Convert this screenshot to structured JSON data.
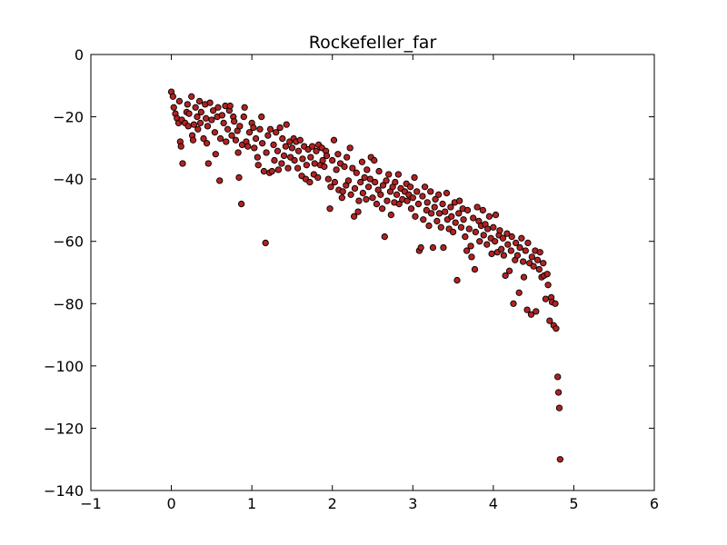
{
  "colors": {
    "marker_fill": "#b22222",
    "marker_edge": "#000000",
    "axes": "#000000",
    "background": "#ffffff"
  },
  "chart_data": {
    "type": "scatter",
    "title": "Rockefeller_far",
    "xlabel": "",
    "ylabel": "",
    "xlim": [
      -1,
      6
    ],
    "ylim": [
      -140,
      0
    ],
    "xticks": [
      -1,
      0,
      1,
      2,
      3,
      4,
      5,
      6
    ],
    "yticks": [
      0,
      -20,
      -40,
      -60,
      -80,
      -100,
      -120,
      -140
    ],
    "xtick_labels": [
      "−1",
      "0",
      "1",
      "2",
      "3",
      "4",
      "5",
      "6"
    ],
    "ytick_labels": [
      "0",
      "−20",
      "−40",
      "−60",
      "−80",
      "−100",
      "−120",
      "−140"
    ],
    "grid": false,
    "legend": "none",
    "points": [
      [
        0.0,
        -12
      ],
      [
        0.02,
        -13.5
      ],
      [
        0.03,
        -17
      ],
      [
        0.05,
        -19
      ],
      [
        0.07,
        -20.5
      ],
      [
        0.09,
        -22
      ],
      [
        0.1,
        -15
      ],
      [
        0.11,
        -28
      ],
      [
        0.12,
        -29.5
      ],
      [
        0.13,
        -21
      ],
      [
        0.14,
        -35
      ],
      [
        0.17,
        -22
      ],
      [
        0.19,
        -18.5
      ],
      [
        0.2,
        -16
      ],
      [
        0.21,
        -23
      ],
      [
        0.22,
        -19
      ],
      [
        0.25,
        -13.5
      ],
      [
        0.26,
        -26
      ],
      [
        0.27,
        -27.5
      ],
      [
        0.28,
        -22.5
      ],
      [
        0.3,
        -17
      ],
      [
        0.32,
        -20
      ],
      [
        0.33,
        -24
      ],
      [
        0.35,
        -15
      ],
      [
        0.36,
        -22
      ],
      [
        0.37,
        -18.5
      ],
      [
        0.4,
        -27
      ],
      [
        0.42,
        -16
      ],
      [
        0.43,
        -20.5
      ],
      [
        0.44,
        -28.5
      ],
      [
        0.45,
        -23
      ],
      [
        0.46,
        -35
      ],
      [
        0.48,
        -15.5
      ],
      [
        0.5,
        -21
      ],
      [
        0.52,
        -18
      ],
      [
        0.54,
        -25
      ],
      [
        0.55,
        -32
      ],
      [
        0.57,
        -20
      ],
      [
        0.58,
        -17
      ],
      [
        0.6,
        -40.5
      ],
      [
        0.61,
        -27
      ],
      [
        0.63,
        -19.5
      ],
      [
        0.65,
        -22
      ],
      [
        0.67,
        -16.5
      ],
      [
        0.68,
        -28
      ],
      [
        0.7,
        -24
      ],
      [
        0.72,
        -18
      ],
      [
        0.73,
        -16.5
      ],
      [
        0.75,
        -26
      ],
      [
        0.77,
        -20
      ],
      [
        0.78,
        -21.5
      ],
      [
        0.8,
        -27.5
      ],
      [
        0.82,
        -24.5
      ],
      [
        0.83,
        -31.5
      ],
      [
        0.84,
        -39.5
      ],
      [
        0.85,
        -23
      ],
      [
        0.87,
        -48
      ],
      [
        0.88,
        -29
      ],
      [
        0.9,
        -20
      ],
      [
        0.91,
        -17
      ],
      [
        0.93,
        -28
      ],
      [
        0.95,
        -29.5
      ],
      [
        0.97,
        -25
      ],
      [
        1.0,
        -22
      ],
      [
        1.02,
        -23.5
      ],
      [
        1.03,
        -30
      ],
      [
        1.05,
        -27
      ],
      [
        1.07,
        -33
      ],
      [
        1.08,
        -35.5
      ],
      [
        1.1,
        -24
      ],
      [
        1.12,
        -20
      ],
      [
        1.13,
        -28.5
      ],
      [
        1.15,
        -37.5
      ],
      [
        1.17,
        -60.5
      ],
      [
        1.18,
        -31.5
      ],
      [
        1.2,
        -26
      ],
      [
        1.22,
        -38
      ],
      [
        1.23,
        -24
      ],
      [
        1.25,
        -37.5
      ],
      [
        1.27,
        -29
      ],
      [
        1.28,
        -34
      ],
      [
        1.3,
        -25
      ],
      [
        1.32,
        -31
      ],
      [
        1.33,
        -37
      ],
      [
        1.35,
        -23.5
      ],
      [
        1.37,
        -35
      ],
      [
        1.38,
        -27
      ],
      [
        1.4,
        -32.5
      ],
      [
        1.42,
        -29.5
      ],
      [
        1.43,
        -22.5
      ],
      [
        1.45,
        -36.5
      ],
      [
        1.47,
        -28
      ],
      [
        1.48,
        -33
      ],
      [
        1.5,
        -30
      ],
      [
        1.52,
        -27
      ],
      [
        1.53,
        -34
      ],
      [
        1.55,
        -28
      ],
      [
        1.57,
        -36.5
      ],
      [
        1.58,
        -31
      ],
      [
        1.6,
        -27.5
      ],
      [
        1.62,
        -39
      ],
      [
        1.63,
        -33.5
      ],
      [
        1.65,
        -29.5
      ],
      [
        1.67,
        -40
      ],
      [
        1.68,
        -35.5
      ],
      [
        1.7,
        -30.5
      ],
      [
        1.72,
        -41
      ],
      [
        1.73,
        -33
      ],
      [
        1.75,
        -29.5
      ],
      [
        1.77,
        -38.5
      ],
      [
        1.78,
        -35
      ],
      [
        1.8,
        -31
      ],
      [
        1.82,
        -39.5
      ],
      [
        1.83,
        -29
      ],
      [
        1.85,
        -35.5
      ],
      [
        1.87,
        -30
      ],
      [
        1.88,
        -34
      ],
      [
        1.9,
        -36
      ],
      [
        1.92,
        -31
      ],
      [
        1.93,
        -32.5
      ],
      [
        1.95,
        -40
      ],
      [
        1.97,
        -49.5
      ],
      [
        1.98,
        -42.5
      ],
      [
        2.0,
        -34
      ],
      [
        2.02,
        -27.5
      ],
      [
        2.03,
        -41
      ],
      [
        2.05,
        -37
      ],
      [
        2.07,
        -32
      ],
      [
        2.08,
        -43.5
      ],
      [
        2.1,
        -35
      ],
      [
        2.12,
        -46
      ],
      [
        2.13,
        -44
      ],
      [
        2.15,
        -36
      ],
      [
        2.17,
        -42
      ],
      [
        2.18,
        -33
      ],
      [
        2.2,
        -40.5
      ],
      [
        2.22,
        -30
      ],
      [
        2.23,
        -45
      ],
      [
        2.25,
        -36.5
      ],
      [
        2.27,
        -52
      ],
      [
        2.28,
        -43
      ],
      [
        2.3,
        -38
      ],
      [
        2.32,
        -50.5
      ],
      [
        2.33,
        -47
      ],
      [
        2.35,
        -41
      ],
      [
        2.37,
        -34.5
      ],
      [
        2.38,
        -44.5
      ],
      [
        2.4,
        -39.5
      ],
      [
        2.42,
        -46.5
      ],
      [
        2.43,
        -37
      ],
      [
        2.45,
        -42.5
      ],
      [
        2.47,
        -40
      ],
      [
        2.48,
        -33
      ],
      [
        2.5,
        -46
      ],
      [
        2.52,
        -34
      ],
      [
        2.53,
        -41
      ],
      [
        2.55,
        -48
      ],
      [
        2.57,
        -43.5
      ],
      [
        2.58,
        -37.5
      ],
      [
        2.6,
        -45
      ],
      [
        2.62,
        -49.5
      ],
      [
        2.63,
        -42
      ],
      [
        2.65,
        -58.5
      ],
      [
        2.67,
        -40.5
      ],
      [
        2.68,
        -47
      ],
      [
        2.7,
        -38.5
      ],
      [
        2.72,
        -44
      ],
      [
        2.73,
        -51.5
      ],
      [
        2.75,
        -42.5
      ],
      [
        2.77,
        -47.5
      ],
      [
        2.78,
        -41
      ],
      [
        2.8,
        -45
      ],
      [
        2.82,
        -38.5
      ],
      [
        2.83,
        -48
      ],
      [
        2.85,
        -43
      ],
      [
        2.87,
        -46.5
      ],
      [
        2.9,
        -44
      ],
      [
        2.92,
        -41.5
      ],
      [
        2.93,
        -47
      ],
      [
        2.95,
        -45
      ],
      [
        2.97,
        -42.5
      ],
      [
        2.98,
        -49.5
      ],
      [
        3.0,
        -46
      ],
      [
        3.02,
        -39.5
      ],
      [
        3.03,
        -52
      ],
      [
        3.05,
        -44
      ],
      [
        3.07,
        -48
      ],
      [
        3.08,
        -63
      ],
      [
        3.1,
        -62
      ],
      [
        3.12,
        -45.5
      ],
      [
        3.13,
        -53
      ],
      [
        3.15,
        -42.5
      ],
      [
        3.17,
        -50
      ],
      [
        3.18,
        -47.5
      ],
      [
        3.2,
        -55
      ],
      [
        3.22,
        -44
      ],
      [
        3.23,
        -51
      ],
      [
        3.25,
        -62
      ],
      [
        3.27,
        -49
      ],
      [
        3.28,
        -46.5
      ],
      [
        3.3,
        -53.5
      ],
      [
        3.32,
        -45
      ],
      [
        3.33,
        -51
      ],
      [
        3.35,
        -55.5
      ],
      [
        3.37,
        -48
      ],
      [
        3.38,
        -62
      ],
      [
        3.4,
        -50.5
      ],
      [
        3.42,
        -44.5
      ],
      [
        3.43,
        -53
      ],
      [
        3.45,
        -56
      ],
      [
        3.47,
        -49
      ],
      [
        3.48,
        -52
      ],
      [
        3.5,
        -57
      ],
      [
        3.52,
        -47.5
      ],
      [
        3.53,
        -54
      ],
      [
        3.55,
        -72.5
      ],
      [
        3.57,
        -51
      ],
      [
        3.58,
        -47
      ],
      [
        3.6,
        -55.5
      ],
      [
        3.62,
        -49.5
      ],
      [
        3.63,
        -53
      ],
      [
        3.65,
        -58.5
      ],
      [
        3.67,
        -63
      ],
      [
        3.68,
        -50
      ],
      [
        3.7,
        -56
      ],
      [
        3.72,
        -61.5
      ],
      [
        3.73,
        -65
      ],
      [
        3.75,
        -52.5
      ],
      [
        3.77,
        -69
      ],
      [
        3.78,
        -57
      ],
      [
        3.8,
        -49
      ],
      [
        3.82,
        -53.5
      ],
      [
        3.83,
        -60
      ],
      [
        3.85,
        -55
      ],
      [
        3.87,
        -50
      ],
      [
        3.88,
        -58
      ],
      [
        3.9,
        -54.5
      ],
      [
        3.92,
        -61
      ],
      [
        3.93,
        -56
      ],
      [
        3.95,
        -52
      ],
      [
        3.97,
        -59
      ],
      [
        3.98,
        -64
      ],
      [
        4.0,
        -55.5
      ],
      [
        4.02,
        -60
      ],
      [
        4.03,
        -51.5
      ],
      [
        4.05,
        -63.5
      ],
      [
        4.07,
        -58
      ],
      [
        4.08,
        -56.5
      ],
      [
        4.1,
        -62.5
      ],
      [
        4.12,
        -59
      ],
      [
        4.13,
        -64.5
      ],
      [
        4.15,
        -71
      ],
      [
        4.17,
        -57.5
      ],
      [
        4.18,
        -61
      ],
      [
        4.2,
        -69.5
      ],
      [
        4.22,
        -63
      ],
      [
        4.23,
        -58.5
      ],
      [
        4.25,
        -80
      ],
      [
        4.27,
        -66
      ],
      [
        4.28,
        -60.5
      ],
      [
        4.3,
        -64.5
      ],
      [
        4.32,
        -76.5
      ],
      [
        4.33,
        -62
      ],
      [
        4.35,
        -59
      ],
      [
        4.37,
        -66.5
      ],
      [
        4.38,
        -71.5
      ],
      [
        4.4,
        -63
      ],
      [
        4.42,
        -82
      ],
      [
        4.43,
        -60.5
      ],
      [
        4.45,
        -67
      ],
      [
        4.47,
        -83.5
      ],
      [
        4.48,
        -65
      ],
      [
        4.5,
        -68
      ],
      [
        4.52,
        -63
      ],
      [
        4.53,
        -82.5
      ],
      [
        4.55,
        -66
      ],
      [
        4.57,
        -69
      ],
      [
        4.58,
        -63.5
      ],
      [
        4.6,
        -71.5
      ],
      [
        4.62,
        -67
      ],
      [
        4.63,
        -71
      ],
      [
        4.65,
        -78.5
      ],
      [
        4.67,
        -70.5
      ],
      [
        4.68,
        -74
      ],
      [
        4.7,
        -85.5
      ],
      [
        4.72,
        -78
      ],
      [
        4.73,
        -79.5
      ],
      [
        4.75,
        -87
      ],
      [
        4.77,
        -80
      ],
      [
        4.78,
        -88
      ],
      [
        4.8,
        -103.5
      ],
      [
        4.81,
        -108.5
      ],
      [
        4.82,
        -113.5
      ],
      [
        4.83,
        -130
      ]
    ]
  }
}
